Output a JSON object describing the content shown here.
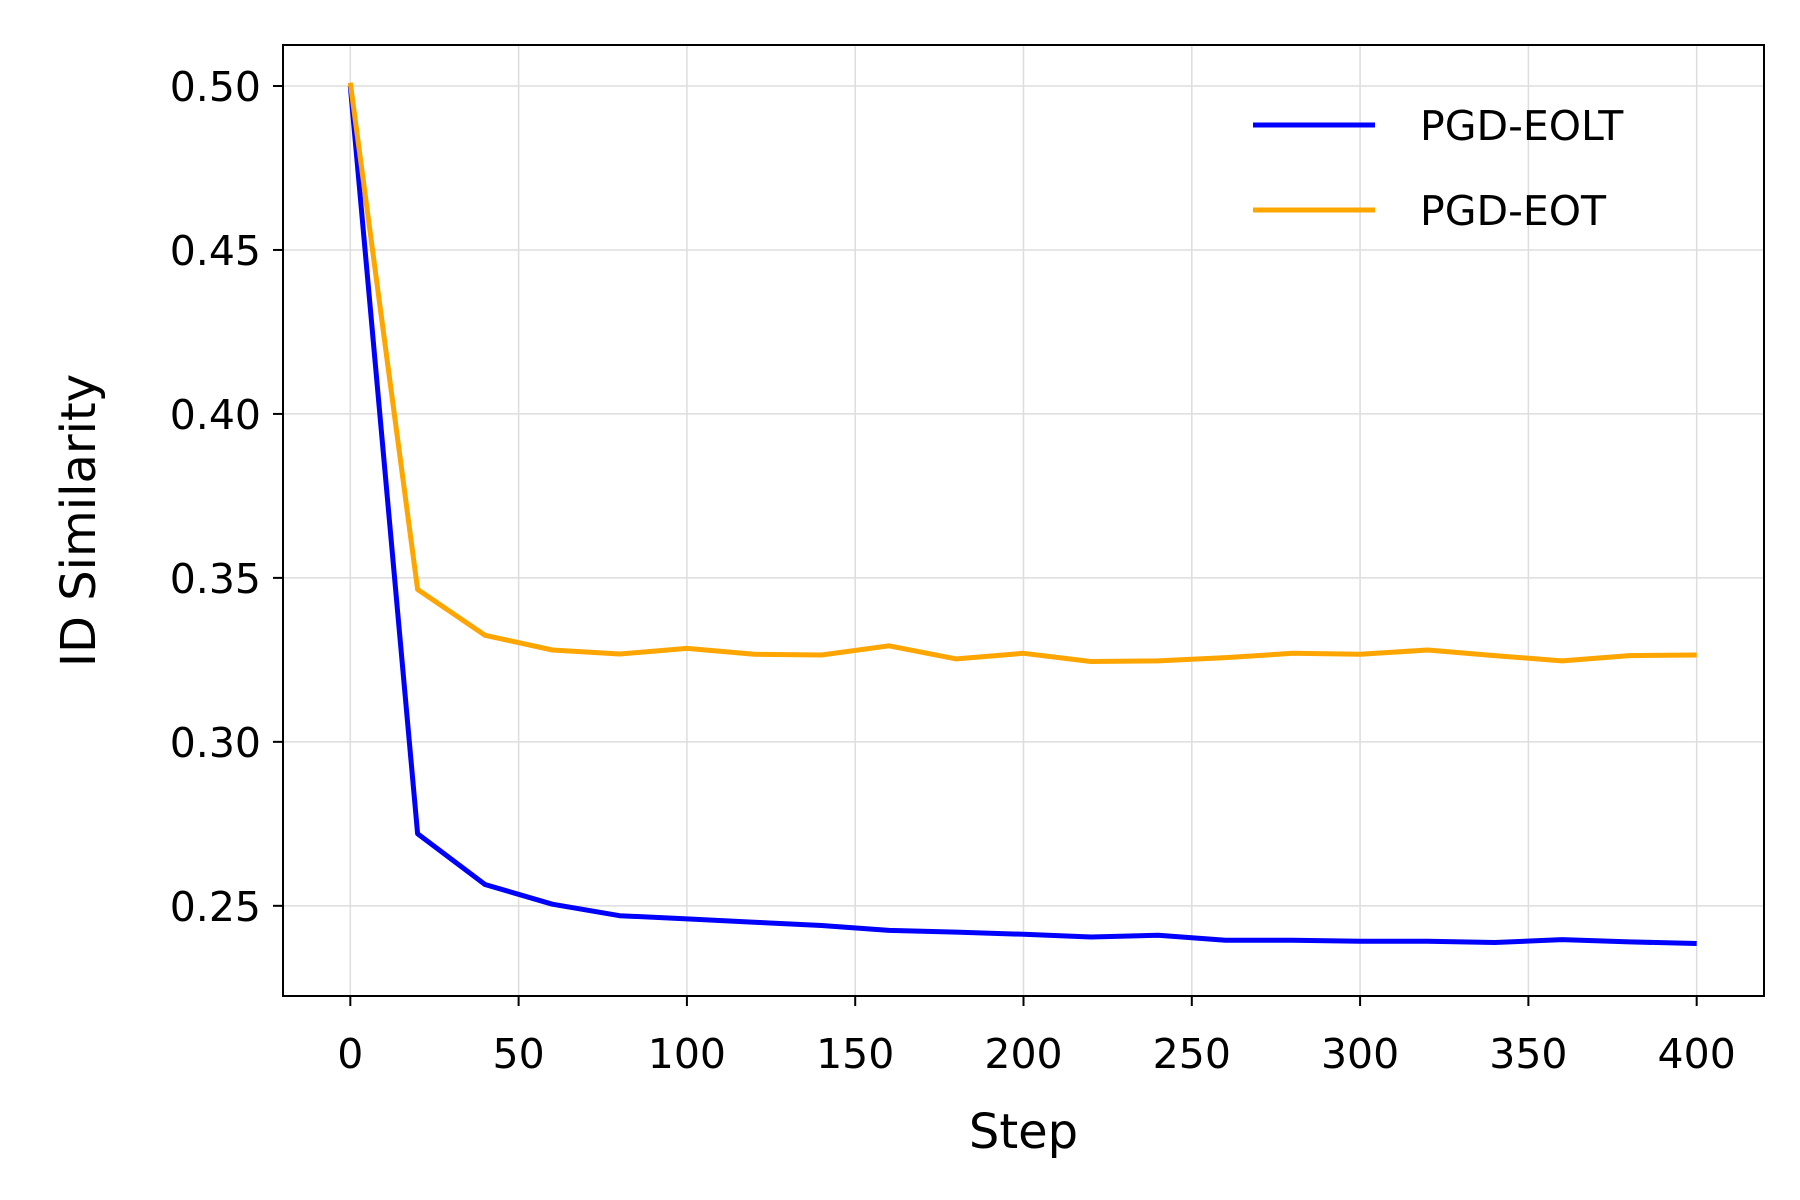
{
  "chart_data": {
    "type": "line",
    "title": "",
    "xlabel": "Step",
    "ylabel": "ID Similarity",
    "xlim": [
      -20,
      420
    ],
    "ylim": [
      0.2225,
      0.5125
    ],
    "xticks": [
      0,
      50,
      100,
      150,
      200,
      250,
      300,
      350,
      400
    ],
    "xtick_labels": [
      "0",
      "50",
      "100",
      "150",
      "200",
      "250",
      "300",
      "350",
      "400"
    ],
    "yticks": [
      0.25,
      0.3,
      0.35,
      0.4,
      0.45,
      0.5
    ],
    "ytick_labels": [
      "0.25",
      "0.30",
      "0.35",
      "0.40",
      "0.45",
      "0.50"
    ],
    "grid": true,
    "legend_position": "top-right",
    "x": [
      0,
      20,
      40,
      60,
      80,
      100,
      120,
      140,
      160,
      180,
      200,
      220,
      240,
      260,
      280,
      300,
      320,
      340,
      360,
      380,
      400
    ],
    "series": [
      {
        "name": "PGD-EOLT",
        "color": "#0000ff",
        "values": [
          0.5,
          0.272,
          0.2565,
          0.2505,
          0.247,
          0.246,
          0.245,
          0.244,
          0.2425,
          0.242,
          0.2413,
          0.2405,
          0.241,
          0.2395,
          0.2395,
          0.2392,
          0.2392,
          0.2388,
          0.2397,
          0.239,
          0.2385
        ]
      },
      {
        "name": "PGD-EOT",
        "color": "#ffa500",
        "values": [
          0.501,
          0.3465,
          0.3325,
          0.328,
          0.3268,
          0.3285,
          0.3267,
          0.3265,
          0.3293,
          0.3253,
          0.327,
          0.3245,
          0.3247,
          0.3257,
          0.327,
          0.3267,
          0.328,
          0.3263,
          0.3247,
          0.3263,
          0.3265
        ]
      }
    ]
  }
}
